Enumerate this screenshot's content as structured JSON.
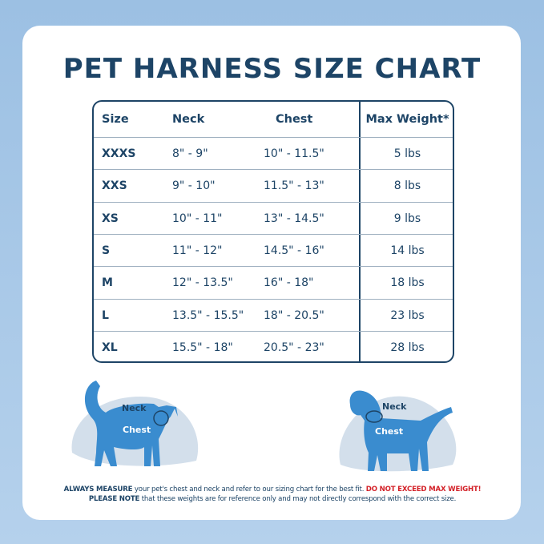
{
  "title": "PET HARNESS SIZE CHART",
  "table": {
    "headers": [
      "Size",
      "Neck",
      "Chest",
      "Max Weight*"
    ],
    "rows": [
      [
        "XXXS",
        "8\" - 9\"",
        "10\" - 11.5\"",
        "5 lbs"
      ],
      [
        "XXS",
        "9\" - 10\"",
        "11.5\" - 13\"",
        "8 lbs"
      ],
      [
        "XS",
        "10\" - 11\"",
        "13\" - 14.5\"",
        "9 lbs"
      ],
      [
        "S",
        "11\" - 12\"",
        "14.5\" - 16\"",
        "14 lbs"
      ],
      [
        "M",
        "12\" - 13.5\"",
        "16\" - 18\"",
        "18 lbs"
      ],
      [
        "L",
        "13.5\" - 15.5\"",
        "18\" - 20.5\"",
        "23 lbs"
      ],
      [
        "XL",
        "15.5\" - 18\"",
        "20.5\" - 23\"",
        "28 lbs"
      ]
    ]
  },
  "diagrams": {
    "cat": {
      "neck_label": "Neck",
      "chest_label": "Chest"
    },
    "dog": {
      "neck_label": "Neck",
      "chest_label": "Chest"
    }
  },
  "footer": {
    "line1_bold": "ALWAYS MEASURE",
    "line1_text": " your pet's chest and neck and refer  to our sizing chart for the best fit. ",
    "line1_warning": "DO NOT EXCEED MAX WEIGHT!",
    "line2_bold": "PLEASE NOTE",
    "line2_text": " that these weights are for reference only and may not directly correspond with the correct size."
  },
  "colors": {
    "navy": "#1d4466",
    "pet_blue": "#3a8ccf",
    "blob": "#d3dfeb",
    "warning": "#d32027"
  }
}
